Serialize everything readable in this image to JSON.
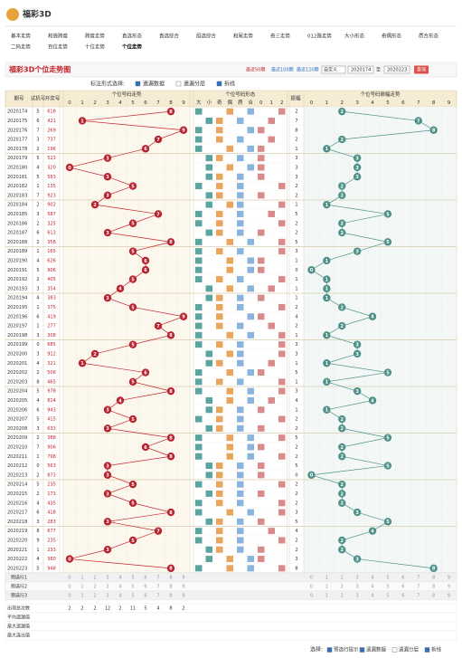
{
  "header": {
    "logo": "福彩3D",
    "nav": [
      "基本走势",
      "和值跨度",
      "跨度走势",
      "直选形态",
      "直选综合",
      "组选综合",
      "和尾走势",
      "奇三走势",
      "012路走势",
      "大小形态",
      "奇偶形态",
      "质合形态",
      "二码走势",
      "百位走势",
      "十位走势",
      "个位走势"
    ]
  },
  "toolbar": {
    "title": "福彩3D个位走势图",
    "recent": [
      "最近50期",
      "最近100期",
      "最近120期"
    ],
    "select": "自定义",
    "from": "2020174",
    "to_label": "至",
    "to": "2020223",
    "query": "查询"
  },
  "options": {
    "label": "标注形式选择:",
    "items": [
      "遗漏数据",
      "遗漏分层",
      "拆线"
    ]
  },
  "table": {
    "headers": {
      "period": "期号",
      "trial": "试机号",
      "number": "开奖号",
      "trend": "个位号码走势",
      "form": "个位号码形态",
      "amp": "振幅",
      "amp_trend": "个位号码振幅走势"
    },
    "digit_labels": [
      "0",
      "1",
      "2",
      "3",
      "4",
      "5",
      "6",
      "7",
      "8",
      "9"
    ],
    "form_labels": [
      "大",
      "小",
      "奇",
      "偶",
      "质",
      "合",
      "0",
      "1",
      "2"
    ],
    "rows": [
      {
        "period": "2020174",
        "trial": "5",
        "number": "618",
        "digit": 8,
        "amp": 2
      },
      {
        "period": "2020175",
        "trial": "6",
        "number": "421",
        "digit": 1,
        "amp": 7
      },
      {
        "period": "2020176",
        "trial": "7",
        "number": "269",
        "digit": 9,
        "amp": 8
      },
      {
        "period": "2020177",
        "trial": "3",
        "number": "737",
        "digit": 7,
        "amp": 2
      },
      {
        "period": "2020178",
        "trial": "2",
        "number": "196",
        "digit": 6,
        "amp": 1
      },
      {
        "period": "2020179",
        "trial": "5",
        "number": "523",
        "digit": 3,
        "amp": 3
      },
      {
        "period": "2020180",
        "trial": "4",
        "number": "320",
        "digit": 0,
        "amp": 3
      },
      {
        "period": "2020181",
        "trial": "5",
        "number": "583",
        "digit": 3,
        "amp": 3
      },
      {
        "period": "2020182",
        "trial": "1",
        "number": "135",
        "digit": 5,
        "amp": 2
      },
      {
        "period": "2020183",
        "trial": "7",
        "number": "923",
        "digit": 3,
        "amp": 2
      },
      {
        "period": "2020184",
        "trial": "2",
        "number": "902",
        "digit": 2,
        "amp": 1
      },
      {
        "period": "2020185",
        "trial": "3",
        "number": "587",
        "digit": 7,
        "amp": 5
      },
      {
        "period": "2020186",
        "trial": "2",
        "number": "325",
        "digit": 5,
        "amp": 2
      },
      {
        "period": "2020187",
        "trial": "6",
        "number": "613",
        "digit": 3,
        "amp": 2
      },
      {
        "period": "2020188",
        "trial": "2",
        "number": "358",
        "digit": 8,
        "amp": 5
      },
      {
        "period": "2020189",
        "trial": "1",
        "number": "165",
        "digit": 5,
        "amp": 3
      },
      {
        "period": "2020190",
        "trial": "4",
        "number": "626",
        "digit": 6,
        "amp": 1
      },
      {
        "period": "2020191",
        "trial": "5",
        "number": "906",
        "digit": 6,
        "amp": 0
      },
      {
        "period": "2020192",
        "trial": "2",
        "number": "405",
        "digit": 5,
        "amp": 1
      },
      {
        "period": "2020193",
        "trial": "3",
        "number": "354",
        "digit": 4,
        "amp": 1
      },
      {
        "period": "2020194",
        "trial": "4",
        "number": "383",
        "digit": 3,
        "amp": 1
      },
      {
        "period": "2020195",
        "trial": "1",
        "number": "375",
        "digit": 5,
        "amp": 2
      },
      {
        "period": "2020196",
        "trial": "6",
        "number": "419",
        "digit": 9,
        "amp": 4
      },
      {
        "period": "2020197",
        "trial": "1",
        "number": "277",
        "digit": 7,
        "amp": 2
      },
      {
        "period": "2020198",
        "trial": "3",
        "number": "308",
        "digit": 8,
        "amp": 1
      },
      {
        "period": "2020199",
        "trial": "0",
        "number": "685",
        "digit": 5,
        "amp": 3
      },
      {
        "period": "2020200",
        "trial": "3",
        "number": "912",
        "digit": 2,
        "amp": 3
      },
      {
        "period": "2020201",
        "trial": "4",
        "number": "321",
        "digit": 1,
        "amp": 1
      },
      {
        "period": "2020202",
        "trial": "2",
        "number": "506",
        "digit": 6,
        "amp": 5
      },
      {
        "period": "2020203",
        "trial": "8",
        "number": "465",
        "digit": 5,
        "amp": 1
      },
      {
        "period": "2020204",
        "trial": "5",
        "number": "978",
        "digit": 8,
        "amp": 3
      },
      {
        "period": "2020205",
        "trial": "4",
        "number": "814",
        "digit": 4,
        "amp": 4
      },
      {
        "period": "2020206",
        "trial": "6",
        "number": "943",
        "digit": 3,
        "amp": 1
      },
      {
        "period": "2020207",
        "trial": "5",
        "number": "415",
        "digit": 5,
        "amp": 2
      },
      {
        "period": "2020208",
        "trial": "3",
        "number": "633",
        "digit": 3,
        "amp": 2
      },
      {
        "period": "2020209",
        "trial": "2",
        "number": "388",
        "digit": 8,
        "amp": 5
      },
      {
        "period": "2020210",
        "trial": "7",
        "number": "906",
        "digit": 6,
        "amp": 2
      },
      {
        "period": "2020211",
        "trial": "1",
        "number": "798",
        "digit": 8,
        "amp": 2
      },
      {
        "period": "2020212",
        "trial": "0",
        "number": "563",
        "digit": 3,
        "amp": 5
      },
      {
        "period": "2020213",
        "trial": "2",
        "number": "873",
        "digit": 3,
        "amp": 0
      },
      {
        "period": "2020214",
        "trial": "5",
        "number": "235",
        "digit": 5,
        "amp": 2
      },
      {
        "period": "2020215",
        "trial": "2",
        "number": "173",
        "digit": 3,
        "amp": 2
      },
      {
        "period": "2020216",
        "trial": "4",
        "number": "435",
        "digit": 5,
        "amp": 2
      },
      {
        "period": "2020217",
        "trial": "6",
        "number": "418",
        "digit": 8,
        "amp": 3
      },
      {
        "period": "2020218",
        "trial": "3",
        "number": "283",
        "digit": 3,
        "amp": 5
      },
      {
        "period": "2020219",
        "trial": "8",
        "number": "677",
        "digit": 7,
        "amp": 4
      },
      {
        "period": "2020220",
        "trial": "9",
        "number": "235",
        "digit": 5,
        "amp": 2
      },
      {
        "period": "2020221",
        "trial": "1",
        "number": "233",
        "digit": 3,
        "amp": 2
      },
      {
        "period": "2020222",
        "trial": "4",
        "number": "380",
        "digit": 0,
        "amp": 3
      },
      {
        "period": "2020223",
        "trial": "5",
        "number": "948",
        "digit": 8,
        "amp": 8
      }
    ],
    "preselect": [
      "预选行1",
      "预选行2",
      "预选行3"
    ],
    "stats_labels": [
      "出现总次数",
      "平均遗漏值",
      "最大遗漏值",
      "最大连出值"
    ],
    "appear_counts": [
      2,
      2,
      2,
      12,
      2,
      11,
      5,
      4,
      8,
      2
    ]
  },
  "footer": {
    "label": "选择:",
    "items": [
      "预选行提示",
      "遗漏数据",
      "遗漏分层",
      "拆线"
    ]
  }
}
